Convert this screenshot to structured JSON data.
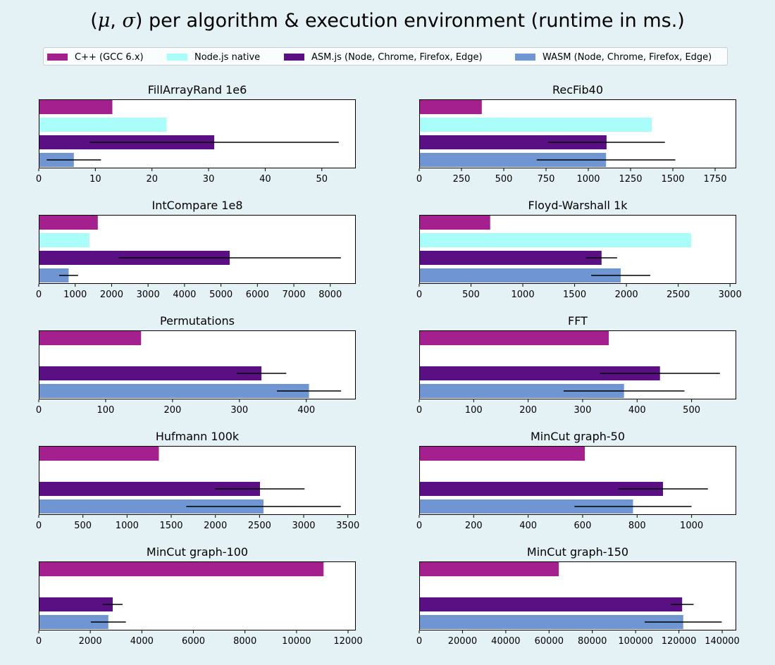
{
  "title": {
    "mu": "μ",
    "sigma": "σ",
    "rest": " per algorithm & execution environment (runtime in ms.)"
  },
  "legend": [
    {
      "label": "C++ (GCC 6.x)",
      "color": "#a4208f"
    },
    {
      "label": "Node.js native",
      "color": "#aafef9"
    },
    {
      "label": "ASM.js (Node, Chrome, Firefox, Edge)",
      "color": "#5a1083"
    },
    {
      "label": "WASM (Node, Chrome, Firefox, Edge)",
      "color": "#6f95d3"
    }
  ],
  "chart_data": [
    {
      "type": "bar",
      "title": "FillArrayRand 1e6",
      "xlim": [
        0,
        56
      ],
      "ticks": [
        0,
        10,
        20,
        30,
        40,
        50
      ],
      "series": [
        {
          "name": "C++ (GCC 6.x)",
          "value": 13,
          "err": null
        },
        {
          "name": "Node.js native",
          "value": 22.6,
          "err": null
        },
        {
          "name": "ASM.js (Node, Chrome, Firefox, Edge)",
          "value": 31,
          "err": 22
        },
        {
          "name": "WASM (Node, Chrome, Firefox, Edge)",
          "value": 6.2,
          "err": 4.8
        }
      ]
    },
    {
      "type": "bar",
      "title": "RecFib40",
      "xlim": [
        0,
        1875
      ],
      "ticks": [
        0,
        250,
        500,
        750,
        1000,
        1250,
        1500,
        1750
      ],
      "series": [
        {
          "name": "C++ (GCC 6.x)",
          "value": 370,
          "err": null
        },
        {
          "name": "Node.js native",
          "value": 1375,
          "err": null
        },
        {
          "name": "ASM.js (Node, Chrome, Firefox, Edge)",
          "value": 1108,
          "err": 345
        },
        {
          "name": "WASM (Node, Chrome, Firefox, Edge)",
          "value": 1105,
          "err": 410
        }
      ]
    },
    {
      "type": "bar",
      "title": "IntCompare 1e8",
      "xlim": [
        0,
        8700
      ],
      "ticks": [
        0,
        1000,
        2000,
        3000,
        4000,
        5000,
        6000,
        7000,
        8000
      ],
      "series": [
        {
          "name": "C++ (GCC 6.x)",
          "value": 1620,
          "err": null
        },
        {
          "name": "Node.js native",
          "value": 1390,
          "err": null
        },
        {
          "name": "ASM.js (Node, Chrome, Firefox, Edge)",
          "value": 5240,
          "err": 3050
        },
        {
          "name": "WASM (Node, Chrome, Firefox, Edge)",
          "value": 820,
          "err": 260
        }
      ]
    },
    {
      "type": "bar",
      "title": "Floyd-Warshall 1k",
      "xlim": [
        0,
        3060
      ],
      "ticks": [
        0,
        500,
        1000,
        1500,
        2000,
        2500,
        3000
      ],
      "series": [
        {
          "name": "C++ (GCC 6.x)",
          "value": 685,
          "err": null
        },
        {
          "name": "Node.js native",
          "value": 2625,
          "err": null
        },
        {
          "name": "ASM.js (Node, Chrome, Firefox, Edge)",
          "value": 1760,
          "err": 150
        },
        {
          "name": "WASM (Node, Chrome, Firefox, Edge)",
          "value": 1945,
          "err": 285
        }
      ]
    },
    {
      "type": "bar",
      "title": "Permutations",
      "xlim": [
        0,
        474
      ],
      "ticks": [
        0,
        100,
        200,
        300,
        400
      ],
      "series": [
        {
          "name": "C++ (GCC 6.x)",
          "value": 153,
          "err": null
        },
        {
          "name": "Node.js native",
          "value": null,
          "err": null
        },
        {
          "name": "ASM.js (Node, Chrome, Firefox, Edge)",
          "value": 333,
          "err": 37
        },
        {
          "name": "WASM (Node, Chrome, Firefox, Edge)",
          "value": 404,
          "err": 48
        }
      ]
    },
    {
      "type": "bar",
      "title": "FFT",
      "xlim": [
        0,
        582
      ],
      "ticks": [
        0,
        100,
        200,
        300,
        400,
        500
      ],
      "series": [
        {
          "name": "C++ (GCC 6.x)",
          "value": 348,
          "err": null
        },
        {
          "name": "Node.js native",
          "value": null,
          "err": null
        },
        {
          "name": "ASM.js (Node, Chrome, Firefox, Edge)",
          "value": 442,
          "err": 110
        },
        {
          "name": "WASM (Node, Chrome, Firefox, Edge)",
          "value": 376,
          "err": 111
        }
      ]
    },
    {
      "type": "bar",
      "title": "Hufmann 100k",
      "xlim": [
        0,
        3590
      ],
      "ticks": [
        0,
        500,
        1000,
        1500,
        2000,
        2500,
        3000,
        3500
      ],
      "series": [
        {
          "name": "C++ (GCC 6.x)",
          "value": 1360,
          "err": null
        },
        {
          "name": "Node.js native",
          "value": null,
          "err": null
        },
        {
          "name": "ASM.js (Node, Chrome, Firefox, Edge)",
          "value": 2505,
          "err": 505
        },
        {
          "name": "WASM (Node, Chrome, Firefox, Edge)",
          "value": 2545,
          "err": 875
        }
      ]
    },
    {
      "type": "bar",
      "title": "MinCut graph-50",
      "xlim": [
        0,
        1164
      ],
      "ticks": [
        0,
        200,
        400,
        600,
        800,
        1000
      ],
      "series": [
        {
          "name": "C++ (GCC 6.x)",
          "value": 608,
          "err": null
        },
        {
          "name": "Node.js native",
          "value": null,
          "err": null
        },
        {
          "name": "ASM.js (Node, Chrome, Firefox, Edge)",
          "value": 895,
          "err": 165
        },
        {
          "name": "WASM (Node, Chrome, Firefox, Edge)",
          "value": 785,
          "err": 215
        }
      ]
    },
    {
      "type": "bar",
      "title": "MinCut graph-100",
      "xlim": [
        0,
        12300
      ],
      "ticks": [
        0,
        2000,
        4000,
        6000,
        8000,
        10000,
        12000
      ],
      "series": [
        {
          "name": "C++ (GCC 6.x)",
          "value": 11050,
          "err": null
        },
        {
          "name": "Node.js native",
          "value": null,
          "err": null
        },
        {
          "name": "ASM.js (Node, Chrome, Firefox, Edge)",
          "value": 2870,
          "err": 380
        },
        {
          "name": "WASM (Node, Chrome, Firefox, Edge)",
          "value": 2700,
          "err": 680
        }
      ]
    },
    {
      "type": "bar",
      "title": "MinCut graph-150",
      "xlim": [
        0,
        146500
      ],
      "ticks": [
        0,
        20000,
        40000,
        60000,
        80000,
        100000,
        120000,
        140000
      ],
      "series": [
        {
          "name": "C++ (GCC 6.x)",
          "value": 64500,
          "err": null
        },
        {
          "name": "Node.js native",
          "value": null,
          "err": null
        },
        {
          "name": "ASM.js (Node, Chrome, Firefox, Edge)",
          "value": 121500,
          "err": 5300
        },
        {
          "name": "WASM (Node, Chrome, Firefox, Edge)",
          "value": 122000,
          "err": 17800
        }
      ]
    }
  ]
}
